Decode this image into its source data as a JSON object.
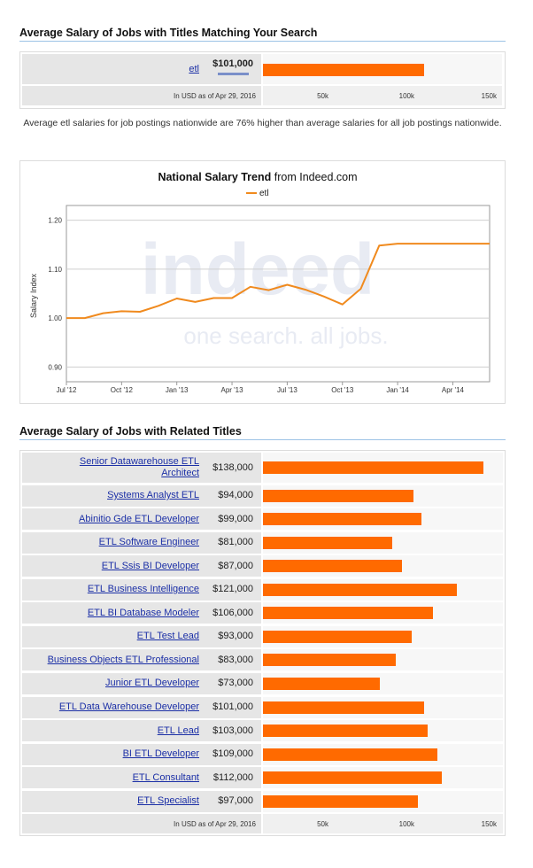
{
  "search_section": {
    "title": "Average Salary of Jobs with Titles Matching Your Search",
    "job": {
      "label": "etl",
      "salary": "$101,000",
      "value": 101000
    },
    "footnote": "In USD as of Apr 29, 2016",
    "scale_ticks": [
      "50k",
      "100k",
      "150k"
    ],
    "scale_max": 150000
  },
  "description": "Average etl salaries for job postings nationwide are 76% higher than average salaries for all job postings nationwide.",
  "trend_chart": {
    "chart_data": {
      "type": "line",
      "title_bold": "National Salary Trend",
      "title_rest": " from Indeed.com",
      "ylabel": "Salary Index",
      "legend": "etl",
      "legend_position": "top-center",
      "ylim": [
        0.87,
        1.23
      ],
      "yticks": [
        "0.90",
        "1.00",
        "1.10",
        "1.20"
      ],
      "x_tick_labels": [
        "Jul '12",
        "Oct '12",
        "Jan '13",
        "Apr '13",
        "Jul '13",
        "Oct '13",
        "Jan '14",
        "Apr '14"
      ],
      "x_tick_positions": [
        0,
        3,
        6,
        9,
        12,
        15,
        18,
        21
      ],
      "x_months": [
        0,
        1,
        2,
        3,
        4,
        5,
        6,
        7,
        8,
        9,
        10,
        11,
        12,
        13,
        14,
        15,
        16,
        17,
        18,
        19,
        20,
        21,
        22,
        23
      ],
      "series": [
        {
          "name": "etl",
          "color": "#f08a1e",
          "values": [
            1.0,
            1.0,
            1.01,
            1.014,
            1.013,
            1.025,
            1.04,
            1.033,
            1.041,
            1.041,
            1.064,
            1.057,
            1.068,
            1.058,
            1.044,
            1.028,
            1.06,
            1.148,
            1.152,
            1.152,
            1.152,
            1.152,
            1.152,
            1.152
          ]
        }
      ],
      "grid": true,
      "watermark": [
        "indeed",
        "one search. all jobs."
      ]
    }
  },
  "related_section": {
    "title": "Average Salary of Jobs with Related Titles",
    "jobs": [
      {
        "label": "Senior Datawarehouse ETL Architect",
        "salary": "$138,000",
        "value": 138000
      },
      {
        "label": "Systems Analyst ETL",
        "salary": "$94,000",
        "value": 94000
      },
      {
        "label": "Abinitio Gde ETL Developer",
        "salary": "$99,000",
        "value": 99000
      },
      {
        "label": "ETL Software Engineer",
        "salary": "$81,000",
        "value": 81000
      },
      {
        "label": "ETL Ssis BI Developer",
        "salary": "$87,000",
        "value": 87000
      },
      {
        "label": "ETL Business Intelligence",
        "salary": "$121,000",
        "value": 121000
      },
      {
        "label": "ETL BI Database Modeler",
        "salary": "$106,000",
        "value": 106000
      },
      {
        "label": "ETL Test Lead",
        "salary": "$93,000",
        "value": 93000
      },
      {
        "label": "Business Objects ETL Professional",
        "salary": "$83,000",
        "value": 83000
      },
      {
        "label": "Junior ETL Developer",
        "salary": "$73,000",
        "value": 73000
      },
      {
        "label": "ETL Data Warehouse Developer",
        "salary": "$101,000",
        "value": 101000
      },
      {
        "label": "ETL Lead",
        "salary": "$103,000",
        "value": 103000
      },
      {
        "label": "BI ETL Developer",
        "salary": "$109,000",
        "value": 109000
      },
      {
        "label": "ETL Consultant",
        "salary": "$112,000",
        "value": 112000
      },
      {
        "label": "ETL Specialist",
        "salary": "$97,000",
        "value": 97000
      }
    ],
    "footnote": "In USD as of Apr 29, 2016",
    "scale_ticks": [
      "50k",
      "100k",
      "150k"
    ],
    "scale_max": 150000
  },
  "colors": {
    "bar": "#ff6a00",
    "line": "#f08a1e",
    "link": "#1b2fa6",
    "rule": "#9cc3e6"
  }
}
